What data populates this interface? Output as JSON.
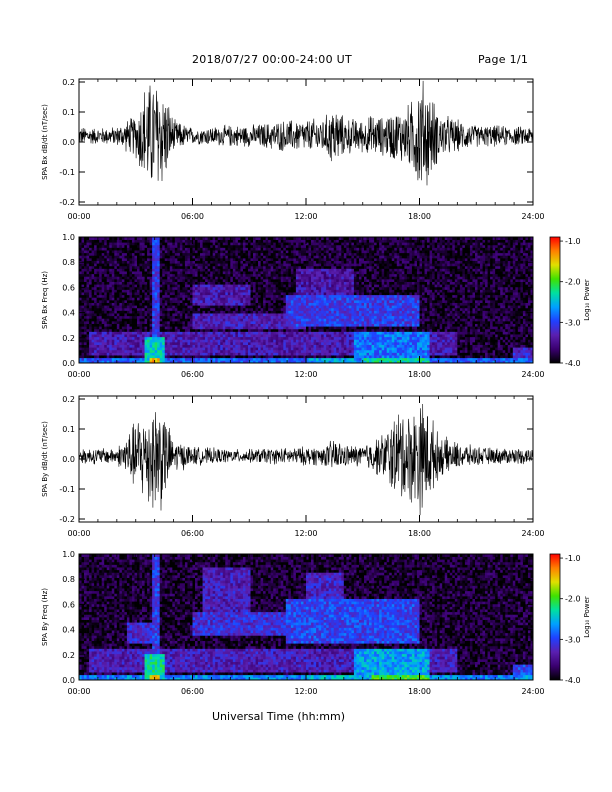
{
  "header": {
    "title": "2018/07/27  00:00-24:00 UT",
    "page": "Page 1/1"
  },
  "footer": {
    "xlabel": "Universal Time (hh:mm)"
  },
  "colorbar": {
    "label": "Log₁₀ Power",
    "ticks": [
      "-1.0",
      "-2.0",
      "-3.0",
      "-4.0"
    ],
    "tick_values": [
      -1.0,
      -2.0,
      -3.0,
      -4.0
    ],
    "range": [
      -4.0,
      -0.9
    ],
    "colors": [
      "#000000",
      "#3a0070",
      "#5a1fb0",
      "#2040ff",
      "#00a0ff",
      "#00e0a0",
      "#40e000",
      "#e0e000",
      "#ff8000",
      "#ff0000"
    ]
  },
  "chart_data": [
    {
      "type": "line",
      "title": "",
      "ylabel": "SPA Bx dB/dt (nT/sec)",
      "xlabel": "",
      "xticks": [
        "00:00",
        "06:00",
        "12:00",
        "18:00",
        "24:00"
      ],
      "xlim": [
        0,
        24
      ],
      "yticks": [
        "-0.2",
        "-0.1",
        "0.0",
        "0.1",
        "0.2"
      ],
      "ylim": [
        -0.21,
        0.21
      ],
      "series_color": "#000000",
      "offset": 0.02,
      "envelope": {
        "hours": [
          0,
          1,
          2,
          3,
          3.5,
          4,
          4.3,
          4.6,
          5,
          6,
          7,
          8,
          9,
          10,
          11,
          12,
          13,
          13.5,
          14,
          15,
          15.5,
          16,
          16.5,
          17,
          17.5,
          18,
          18.3,
          19,
          20,
          21,
          22,
          23,
          24
        ],
        "amplitude": [
          0.035,
          0.03,
          0.035,
          0.08,
          0.2,
          0.21,
          0.21,
          0.16,
          0.06,
          0.03,
          0.035,
          0.04,
          0.04,
          0.05,
          0.06,
          0.06,
          0.07,
          0.12,
          0.07,
          0.06,
          0.08,
          0.07,
          0.09,
          0.1,
          0.12,
          0.21,
          0.21,
          0.09,
          0.06,
          0.04,
          0.04,
          0.035,
          0.035
        ]
      }
    },
    {
      "type": "heatmap",
      "title": "",
      "ylabel": "SPA Bx Freq (Hz)",
      "xlabel": "",
      "xticks": [
        "00:00",
        "06:00",
        "12:00",
        "18:00",
        "24:00"
      ],
      "xlim": [
        0,
        24
      ],
      "yticks": [
        "0.0",
        "0.2",
        "0.4",
        "0.6",
        "0.8",
        "1.0"
      ],
      "ylim": [
        0,
        1.0
      ],
      "background_level": -3.85,
      "features": [
        {
          "t": [
            0,
            24
          ],
          "f": [
            0,
            0.04
          ],
          "level": -2.9
        },
        {
          "t": [
            3.5,
            4.6
          ],
          "f": [
            0,
            0.2
          ],
          "level": -2.4
        },
        {
          "t": [
            3.8,
            4.2
          ],
          "f": [
            0,
            0.05
          ],
          "level": -1.4
        },
        {
          "t": [
            3.9,
            4.2
          ],
          "f": [
            0.05,
            1.0
          ],
          "level": -3.05
        },
        {
          "t": [
            0.5,
            20.0
          ],
          "f": [
            0.06,
            0.26
          ],
          "level": -3.35
        },
        {
          "t": [
            6.0,
            12.0
          ],
          "f": [
            0.28,
            0.4
          ],
          "level": -3.3
        },
        {
          "t": [
            11.0,
            18.0
          ],
          "f": [
            0.3,
            0.55
          ],
          "level": -3.05
        },
        {
          "t": [
            6.0,
            9.0
          ],
          "f": [
            0.45,
            0.62
          ],
          "level": -3.35
        },
        {
          "t": [
            11.5,
            14.5
          ],
          "f": [
            0.55,
            0.75
          ],
          "level": -3.4
        },
        {
          "t": [
            14.5,
            18.5
          ],
          "f": [
            0.0,
            0.25
          ],
          "level": -2.8
        },
        {
          "t": [
            15.0,
            18.5
          ],
          "f": [
            0.0,
            0.04
          ],
          "level": -2.3
        },
        {
          "t": [
            12.0,
            14.5
          ],
          "f": [
            0.0,
            0.05
          ],
          "level": -2.6
        },
        {
          "t": [
            23.0,
            24.0
          ],
          "f": [
            0.0,
            0.12
          ],
          "level": -3.2
        }
      ]
    },
    {
      "type": "line",
      "title": "",
      "ylabel": "SPA By dB/dt (nT/sec)",
      "xlabel": "",
      "xticks": [
        "00:00",
        "06:00",
        "12:00",
        "18:00",
        "24:00"
      ],
      "xlim": [
        0,
        24
      ],
      "yticks": [
        "-0.2",
        "-0.1",
        "0.0",
        "0.1",
        "0.2"
      ],
      "ylim": [
        -0.21,
        0.21
      ],
      "series_color": "#000000",
      "offset": 0.01,
      "envelope": {
        "hours": [
          0,
          1,
          2,
          2.5,
          3,
          3.5,
          4,
          4.3,
          4.6,
          5,
          5.5,
          6,
          7,
          8,
          9,
          10,
          11,
          12,
          13,
          13.5,
          14,
          15,
          15.5,
          16,
          16.5,
          17,
          17.5,
          18,
          18.3,
          19,
          20,
          21,
          22,
          23,
          24
        ],
        "amplitude": [
          0.03,
          0.03,
          0.03,
          0.08,
          0.13,
          0.18,
          0.21,
          0.21,
          0.14,
          0.06,
          0.05,
          0.035,
          0.03,
          0.025,
          0.025,
          0.03,
          0.03,
          0.035,
          0.035,
          0.07,
          0.04,
          0.04,
          0.06,
          0.08,
          0.13,
          0.18,
          0.17,
          0.21,
          0.21,
          0.08,
          0.05,
          0.035,
          0.03,
          0.03,
          0.03
        ]
      }
    },
    {
      "type": "heatmap",
      "title": "",
      "ylabel": "SPA By Freq (Hz)",
      "xlabel": "",
      "xticks": [
        "00:00",
        "06:00",
        "12:00",
        "18:00",
        "24:00"
      ],
      "xlim": [
        0,
        24
      ],
      "yticks": [
        "0.0",
        "0.2",
        "0.4",
        "0.6",
        "0.8",
        "1.0"
      ],
      "ylim": [
        0,
        1.0
      ],
      "background_level": -3.85,
      "features": [
        {
          "t": [
            0,
            24
          ],
          "f": [
            0,
            0.04
          ],
          "level": -2.7
        },
        {
          "t": [
            3.5,
            4.6
          ],
          "f": [
            0,
            0.2
          ],
          "level": -2.3
        },
        {
          "t": [
            3.8,
            4.2
          ],
          "f": [
            0,
            0.05
          ],
          "level": -1.4
        },
        {
          "t": [
            3.9,
            4.2
          ],
          "f": [
            0.05,
            1.0
          ],
          "level": -3.05
        },
        {
          "t": [
            0.5,
            20.0
          ],
          "f": [
            0.06,
            0.26
          ],
          "level": -3.3
        },
        {
          "t": [
            2.5,
            4.0
          ],
          "f": [
            0.3,
            0.45
          ],
          "level": -3.2
        },
        {
          "t": [
            6.0,
            12.0
          ],
          "f": [
            0.35,
            0.55
          ],
          "level": -3.15
        },
        {
          "t": [
            6.5,
            9.0
          ],
          "f": [
            0.55,
            0.9
          ],
          "level": -3.3
        },
        {
          "t": [
            11.0,
            18.0
          ],
          "f": [
            0.3,
            0.65
          ],
          "level": -3.0
        },
        {
          "t": [
            12.0,
            14.0
          ],
          "f": [
            0.6,
            0.85
          ],
          "level": -3.25
        },
        {
          "t": [
            14.5,
            18.5
          ],
          "f": [
            0.0,
            0.25
          ],
          "level": -2.6
        },
        {
          "t": [
            15.5,
            18.5
          ],
          "f": [
            0.0,
            0.05
          ],
          "level": -2.0
        },
        {
          "t": [
            12.0,
            14.5
          ],
          "f": [
            0.0,
            0.05
          ],
          "level": -2.5
        },
        {
          "t": [
            23.0,
            24.0
          ],
          "f": [
            0.0,
            0.12
          ],
          "level": -3.0
        }
      ]
    }
  ]
}
